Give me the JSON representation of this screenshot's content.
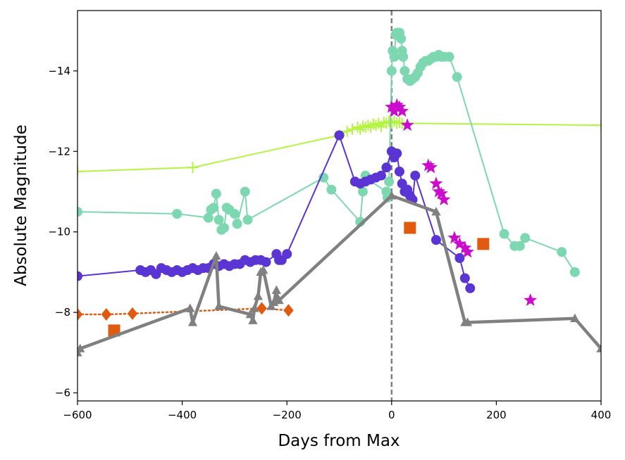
{
  "chart_data": {
    "type": "line",
    "title": "",
    "xlabel": "Days from Max",
    "ylabel": "Absolute Magnitude",
    "xlim": [
      -600,
      400
    ],
    "ylim": [
      -5.8,
      -15.5
    ],
    "y_inverted": true,
    "grid": false,
    "xticks": [
      -600,
      -400,
      -200,
      0,
      200,
      400
    ],
    "yticks": [
      -6,
      -8,
      -10,
      -12,
      -14
    ],
    "xtick_labels": [
      "−600",
      "−400",
      "−200",
      "0",
      "200",
      "400"
    ],
    "ytick_labels": [
      "−6",
      "−8",
      "−10",
      "−12",
      "−14"
    ],
    "reference_line": {
      "x": 0,
      "style": "dashed",
      "color": "#808080"
    },
    "series": [
      {
        "name": "lime",
        "color": "#b5f542",
        "marker": "plus",
        "line": "solid",
        "x": [
          -600,
          -380,
          -100,
          -85,
          -75,
          -65,
          -60,
          -55,
          -50,
          -45,
          -40,
          -35,
          -30,
          -25,
          -20,
          -15,
          -10,
          -5,
          0,
          5,
          10,
          15,
          20,
          400
        ],
        "y": [
          -11.5,
          -11.6,
          -12.4,
          -12.5,
          -12.55,
          -12.6,
          -12.55,
          -12.62,
          -12.6,
          -12.65,
          -12.6,
          -12.68,
          -12.65,
          -12.7,
          -12.62,
          -12.72,
          -12.7,
          -12.75,
          -12.7,
          -12.75,
          -12.7,
          -12.72,
          -12.7,
          -12.65
        ]
      },
      {
        "name": "aquamarine",
        "color": "#7dd8b2",
        "marker": "circle",
        "line": "solid",
        "x": [
          -600,
          -410,
          -350,
          -345,
          -340,
          -335,
          -330,
          -325,
          -320,
          -315,
          -310,
          -300,
          -295,
          -280,
          -275,
          -130,
          -115,
          -60,
          -55,
          -50,
          -45,
          -10,
          -8,
          -5,
          0,
          2,
          5,
          8,
          10,
          12,
          15,
          18,
          20,
          22,
          25,
          30,
          35,
          40,
          45,
          50,
          55,
          60,
          65,
          70,
          75,
          80,
          85,
          90,
          95,
          100,
          110,
          125,
          215,
          235,
          245,
          255,
          325,
          350
        ],
        "y": [
          -10.5,
          -10.45,
          -10.35,
          -10.55,
          -10.6,
          -10.95,
          -10.3,
          -10.05,
          -10.1,
          -10.6,
          -10.55,
          -10.45,
          -10.2,
          -11.0,
          -10.3,
          -11.35,
          -11.05,
          -10.25,
          -11.0,
          -11.4,
          -11.3,
          -11.0,
          -10.85,
          -11.25,
          -14.0,
          -14.5,
          -14.35,
          -14.9,
          -14.95,
          -14.95,
          -14.95,
          -14.8,
          -14.5,
          -14.35,
          -14.0,
          -13.8,
          -13.75,
          -13.8,
          -13.85,
          -13.95,
          -14.1,
          -14.2,
          -14.25,
          -14.25,
          -14.3,
          -14.35,
          -14.35,
          -14.4,
          -14.35,
          -14.35,
          -14.35,
          -13.85,
          -9.95,
          -9.65,
          -9.65,
          -9.85,
          -9.5,
          -9.0
        ]
      },
      {
        "name": "violet",
        "color": "#5b34d4",
        "marker": "circle",
        "line": "solid",
        "x": [
          -600,
          -480,
          -470,
          -460,
          -450,
          -440,
          -430,
          -420,
          -410,
          -400,
          -390,
          -380,
          -370,
          -360,
          -350,
          -340,
          -330,
          -320,
          -310,
          -300,
          -290,
          -280,
          -270,
          -260,
          -250,
          -240,
          -220,
          -215,
          -210,
          -200,
          -100,
          -70,
          -60,
          -50,
          -40,
          -30,
          -20,
          -10,
          0,
          5,
          10,
          15,
          20,
          25,
          30,
          35,
          40,
          45,
          85,
          130,
          140,
          150
        ],
        "y": [
          -8.9,
          -9.05,
          -9.0,
          -9.05,
          -8.95,
          -9.1,
          -9.05,
          -9.0,
          -9.05,
          -9.0,
          -9.05,
          -9.1,
          -9.05,
          -9.1,
          -9.1,
          -9.2,
          -9.15,
          -9.2,
          -9.15,
          -9.2,
          -9.2,
          -9.3,
          -9.25,
          -9.3,
          -9.3,
          -9.25,
          -9.45,
          -9.3,
          -9.3,
          -9.45,
          -12.4,
          -11.25,
          -11.2,
          -11.25,
          -11.3,
          -11.35,
          -11.4,
          -11.6,
          -12.0,
          -11.85,
          -11.95,
          -11.5,
          -11.2,
          -11.0,
          -11.05,
          -10.9,
          -10.8,
          -11.4,
          -9.8,
          -9.35,
          -8.85,
          -8.6
        ]
      },
      {
        "name": "magenta",
        "color": "#cc0ccc",
        "marker": "star",
        "line": "none",
        "x": [
          0,
          5,
          10,
          15,
          20,
          30,
          70,
          75,
          85,
          90,
          95,
          100,
          120,
          130,
          140,
          145,
          265
        ],
        "y": [
          -13.1,
          -13.0,
          -13.15,
          -13.1,
          -13.0,
          -12.65,
          -11.65,
          -11.6,
          -11.2,
          -11.0,
          -10.95,
          -10.8,
          -9.85,
          -9.7,
          -9.6,
          -9.5,
          -8.3
        ]
      },
      {
        "name": "orange-diamond",
        "color": "#e05a10",
        "marker": "diamond",
        "line": "dotted",
        "x": [
          -600,
          -545,
          -495,
          -248,
          -197
        ],
        "y": [
          -7.95,
          -7.95,
          -7.97,
          -8.1,
          -8.05
        ]
      },
      {
        "name": "orange-square",
        "color": "#e05a10",
        "marker": "square",
        "line": "none",
        "x": [
          -530,
          35,
          175
        ],
        "y": [
          -7.55,
          -10.1,
          -9.7
        ]
      },
      {
        "name": "gray",
        "color": "#808080",
        "marker": "triangle",
        "line": "solid",
        "x": [
          -600,
          -595,
          -385,
          -380,
          -335,
          -330,
          -270,
          -265,
          -262,
          -255,
          -250,
          -245,
          -230,
          -225,
          -220,
          -218,
          -215,
          0,
          85,
          140,
          145,
          350,
          400
        ],
        "y": [
          -7.0,
          -7.1,
          -8.1,
          -7.75,
          -9.4,
          -8.15,
          -7.95,
          -7.8,
          -8.1,
          -8.4,
          -9.0,
          -9.05,
          -8.15,
          -8.25,
          -8.55,
          -8.35,
          -8.3,
          -10.9,
          -10.5,
          -7.75,
          -7.75,
          -7.85,
          -7.1
        ]
      }
    ]
  }
}
